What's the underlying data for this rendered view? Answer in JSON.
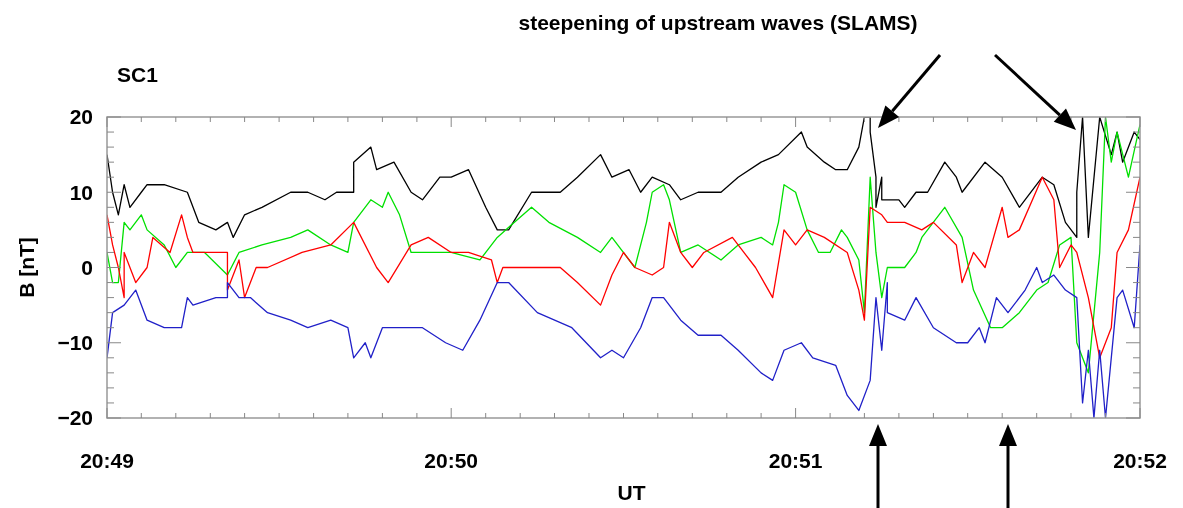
{
  "chart_data": {
    "type": "line",
    "title": "SC1",
    "xlabel": "UT",
    "ylabel": "B [nT]",
    "xlim": [
      20.81667,
      20.86667
    ],
    "ylim": [
      -20,
      20
    ],
    "xticks": [
      {
        "value": 20.81667,
        "label": "20:49"
      },
      {
        "value": 20.81833,
        "label": null
      },
      {
        "value": 20.82,
        "label": null
      },
      {
        "value": 20.82167,
        "label": null
      },
      {
        "value": 20.82333,
        "label": null
      },
      {
        "value": 20.825,
        "label": null
      },
      {
        "value": 20.82667,
        "label": null
      },
      {
        "value": 20.82833,
        "label": null
      },
      {
        "value": 20.83,
        "label": null
      },
      {
        "value": 20.83167,
        "label": null
      },
      {
        "value": 20.83333,
        "label": "20:50"
      },
      {
        "value": 20.835,
        "label": null
      },
      {
        "value": 20.83667,
        "label": null
      },
      {
        "value": 20.83833,
        "label": null
      },
      {
        "value": 20.84,
        "label": null
      },
      {
        "value": 20.84167,
        "label": null
      },
      {
        "value": 20.84333,
        "label": null
      },
      {
        "value": 20.845,
        "label": null
      },
      {
        "value": 20.84667,
        "label": null
      },
      {
        "value": 20.84833,
        "label": null
      },
      {
        "value": 20.85,
        "label": "20:51"
      },
      {
        "value": 20.85167,
        "label": null
      },
      {
        "value": 20.85333,
        "label": null
      },
      {
        "value": 20.855,
        "label": null
      },
      {
        "value": 20.85667,
        "label": null
      },
      {
        "value": 20.85833,
        "label": null
      },
      {
        "value": 20.86,
        "label": null
      },
      {
        "value": 20.86167,
        "label": null
      },
      {
        "value": 20.86333,
        "label": null
      },
      {
        "value": 20.865,
        "label": null
      },
      {
        "value": 20.86667,
        "label": "20:52"
      }
    ],
    "yticks": [
      {
        "value": -20,
        "label": "−20"
      },
      {
        "value": -18,
        "label": null
      },
      {
        "value": -16,
        "label": null
      },
      {
        "value": -14,
        "label": null
      },
      {
        "value": -12,
        "label": null
      },
      {
        "value": -10,
        "label": "−10"
      },
      {
        "value": -8,
        "label": null
      },
      {
        "value": -6,
        "label": null
      },
      {
        "value": -4,
        "label": null
      },
      {
        "value": -2,
        "label": null
      },
      0,
      {
        "value": 2,
        "label": null
      },
      {
        "value": 4,
        "label": null
      },
      {
        "value": 6,
        "label": null
      },
      {
        "value": 8,
        "label": null
      },
      10,
      {
        "value": 12,
        "label": null
      },
      {
        "value": 14,
        "label": null
      },
      {
        "value": 16,
        "label": null
      },
      {
        "value": 18,
        "label": null
      },
      20
    ],
    "line_style": "solid",
    "marker": "none",
    "grid": false,
    "series": [
      {
        "color": "#000000",
        "x": [
          20.81667,
          20.81694,
          20.81722,
          20.8175,
          20.81778,
          20.81833,
          20.81861,
          20.81944,
          20.82056,
          20.82111,
          20.82194,
          20.8225,
          20.82278,
          20.82333,
          20.82417,
          20.82556,
          20.82639,
          20.82722,
          20.82778,
          20.82861,
          20.82861,
          20.82944,
          20.82972,
          20.83056,
          20.83139,
          20.83194,
          20.83278,
          20.83333,
          20.83417,
          20.835,
          20.83556,
          20.83611,
          20.83722,
          20.83861,
          20.83944,
          20.84056,
          20.84111,
          20.84194,
          20.8425,
          20.84306,
          20.84389,
          20.84444,
          20.84528,
          20.84639,
          20.84722,
          20.84833,
          20.84917,
          20.85028,
          20.85056,
          20.85139,
          20.85194,
          20.8525,
          20.85306,
          20.85333,
          20.85361,
          20.85361,
          20.85389,
          20.85389,
          20.85417,
          20.85417,
          20.855,
          20.85528,
          20.85583,
          20.85639,
          20.85722,
          20.85778,
          20.85806,
          20.85917,
          20.86,
          20.86083,
          20.86194,
          20.8625,
          20.86306,
          20.86361,
          20.86361,
          20.86389,
          20.86417,
          20.86472,
          20.86528,
          20.86556,
          20.86583,
          20.86639,
          20.86667
        ],
        "values": [
          15,
          10,
          7,
          11,
          8,
          10,
          11,
          11,
          10,
          6,
          5,
          6,
          4,
          7,
          8,
          10,
          10,
          9,
          10,
          10,
          14,
          16,
          13,
          14,
          10,
          9,
          12,
          12,
          13,
          8,
          5,
          5,
          10,
          10,
          12,
          15,
          12,
          13,
          10,
          12,
          11,
          9,
          10,
          10,
          12,
          14,
          15,
          18,
          16,
          14,
          13,
          13,
          16,
          20,
          20,
          18,
          12,
          8,
          12,
          9,
          9,
          8,
          10,
          10,
          14,
          12,
          10,
          14,
          12,
          8,
          12,
          11,
          6,
          4,
          10,
          20,
          4,
          20,
          15,
          18,
          14,
          18,
          17
        ]
      },
      {
        "color": "#00e000",
        "x": [
          20.81667,
          20.81694,
          20.81722,
          20.8175,
          20.81778,
          20.81833,
          20.81861,
          20.81944,
          20.82,
          20.82056,
          20.82139,
          20.8225,
          20.82306,
          20.82417,
          20.82556,
          20.82639,
          20.8275,
          20.82833,
          20.82861,
          20.82944,
          20.83,
          20.83028,
          20.83083,
          20.83139,
          20.83333,
          20.83472,
          20.83556,
          20.83722,
          20.83806,
          20.83944,
          20.84056,
          20.84111,
          20.84222,
          20.84278,
          20.84306,
          20.84361,
          20.84389,
          20.84444,
          20.84528,
          20.84639,
          20.84722,
          20.84833,
          20.84889,
          20.84917,
          20.84944,
          20.85,
          20.85056,
          20.85111,
          20.85167,
          20.85222,
          20.8525,
          20.85306,
          20.85333,
          20.85361,
          20.85389,
          20.85417,
          20.85444,
          20.85472,
          20.85528,
          20.85583,
          20.85611,
          20.85722,
          20.85806,
          20.85861,
          20.85944,
          20.86,
          20.86083,
          20.86167,
          20.86222,
          20.86278,
          20.86333,
          20.86361,
          20.86417,
          20.86472,
          20.865,
          20.86528,
          20.86556,
          20.86611,
          20.86667
        ],
        "values": [
          2,
          -2,
          -2,
          6,
          5,
          7,
          5,
          3,
          0,
          2,
          2,
          -1,
          2,
          3,
          4,
          5,
          3,
          2,
          6,
          9,
          8,
          10,
          7,
          2,
          2,
          1,
          4,
          8,
          6,
          4,
          2,
          4,
          0,
          6,
          10,
          11,
          9,
          2,
          3,
          1,
          3,
          4,
          3,
          6,
          11,
          10,
          5,
          2,
          2,
          5,
          4,
          1,
          -6,
          12,
          2,
          -4,
          0,
          0,
          0,
          2,
          4,
          8,
          4,
          -3,
          -8,
          -8,
          -6,
          -3,
          -2,
          3,
          4,
          -10,
          -14,
          2,
          20,
          14,
          18,
          12,
          19
        ]
      },
      {
        "color": "#ff0000",
        "x": [
          20.81667,
          20.81694,
          20.81722,
          20.8175,
          20.8175,
          20.81806,
          20.81861,
          20.81889,
          20.81972,
          20.82028,
          20.82056,
          20.82083,
          20.82139,
          20.8225,
          20.8225,
          20.82306,
          20.82333,
          20.82389,
          20.82444,
          20.82611,
          20.8275,
          20.82861,
          20.82972,
          20.83028,
          20.83139,
          20.83222,
          20.83333,
          20.83417,
          20.83528,
          20.83556,
          20.83583,
          20.83667,
          20.83861,
          20.83944,
          20.84056,
          20.84111,
          20.84167,
          20.84222,
          20.84306,
          20.84361,
          20.84389,
          20.84444,
          20.845,
          20.84556,
          20.84694,
          20.84806,
          20.84889,
          20.84944,
          20.85,
          20.85056,
          20.85139,
          20.8525,
          20.85306,
          20.85333,
          20.85361,
          20.85417,
          20.85444,
          20.85528,
          20.85611,
          20.85667,
          20.85778,
          20.85806,
          20.85861,
          20.85917,
          20.86,
          20.86028,
          20.86083,
          20.86194,
          20.8625,
          20.86278,
          20.86333,
          20.86361,
          20.86417,
          20.86472,
          20.86528,
          20.86556,
          20.86611,
          20.86667
        ],
        "values": [
          7,
          3,
          0,
          -4,
          2,
          -2,
          0,
          4,
          2,
          7,
          4,
          2,
          2,
          2,
          -3,
          1,
          -4,
          0,
          0,
          2,
          3,
          6,
          0,
          -2,
          3,
          4,
          2,
          2,
          1,
          -2,
          0,
          0,
          0,
          -2,
          -5,
          -1,
          2,
          0,
          -1,
          0,
          6,
          2,
          0,
          2,
          4,
          0,
          -4,
          5,
          3,
          5,
          4,
          2,
          -3,
          -7,
          8,
          7,
          6,
          6,
          5,
          6,
          3,
          -2,
          2,
          0,
          8,
          4,
          5,
          12,
          9,
          0,
          3,
          2,
          -4,
          -12,
          -8,
          2,
          5,
          12
        ]
      },
      {
        "color": "#2020c8",
        "x": [
          20.81667,
          20.81694,
          20.8175,
          20.81806,
          20.81861,
          20.81944,
          20.82028,
          20.82056,
          20.82083,
          20.82194,
          20.8225,
          20.8225,
          20.82306,
          20.82361,
          20.82444,
          20.82556,
          20.82639,
          20.8275,
          20.82833,
          20.82861,
          20.82917,
          20.82944,
          20.83,
          20.83083,
          20.83194,
          20.83306,
          20.83389,
          20.83472,
          20.83556,
          20.83611,
          20.8375,
          20.83917,
          20.84056,
          20.84111,
          20.84167,
          20.8425,
          20.84306,
          20.84361,
          20.84444,
          20.84528,
          20.84639,
          20.84722,
          20.84833,
          20.84889,
          20.84944,
          20.85028,
          20.85083,
          20.85194,
          20.8525,
          20.85306,
          20.85361,
          20.85389,
          20.85417,
          20.85444,
          20.85444,
          20.85528,
          20.85583,
          20.85667,
          20.85778,
          20.85833,
          20.85889,
          20.85917,
          20.85972,
          20.86028,
          20.86111,
          20.86167,
          20.86194,
          20.8625,
          20.86306,
          20.86361,
          20.86389,
          20.86417,
          20.86444,
          20.86472,
          20.865,
          20.86556,
          20.86583,
          20.86639,
          20.86667
        ],
        "values": [
          -12,
          -6,
          -5,
          -3,
          -7,
          -8,
          -8,
          -4,
          -5,
          -4,
          -4,
          -2,
          -4,
          -4,
          -6,
          -7,
          -8,
          -7,
          -8,
          -12,
          -10,
          -12,
          -8,
          -8,
          -8,
          -10,
          -11,
          -7,
          -2,
          -2,
          -6,
          -8,
          -12,
          -11,
          -12,
          -8,
          -4,
          -4,
          -7,
          -9,
          -9,
          -11,
          -14,
          -15,
          -11,
          -10,
          -12,
          -13,
          -17,
          -19,
          -15,
          -4,
          -11,
          -2,
          -6,
          -7,
          -4,
          -8,
          -10,
          -10,
          -8,
          -10,
          -4,
          -6,
          -3,
          0,
          -2,
          -1,
          -3,
          -4,
          -18,
          -11,
          -20,
          -11,
          -20,
          -4,
          -3,
          -8,
          3
        ]
      }
    ],
    "annotations": [
      "steepening of upstream waves (SLAMS)"
    ]
  }
}
